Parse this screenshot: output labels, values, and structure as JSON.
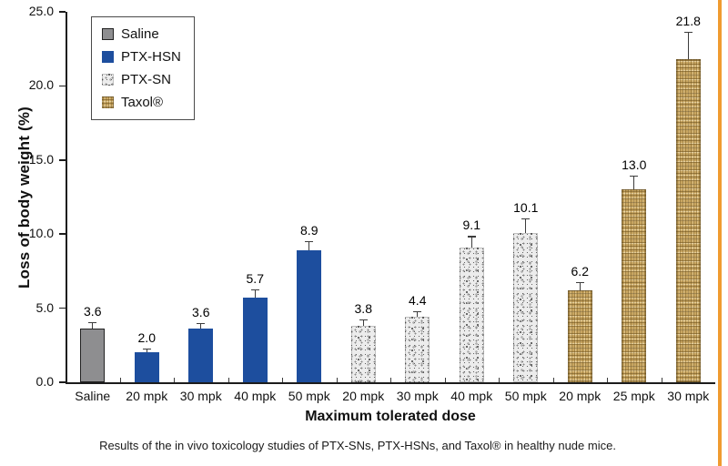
{
  "figure": {
    "caption": "Results of the in vivo toxicology studies of PTX-SNs, PTX-HSNs, and Taxol® in healthy nude mice.",
    "accent_border_color": "#f09b30"
  },
  "chart_data": {
    "type": "bar",
    "title": "",
    "xlabel": "Maximum tolerated dose",
    "ylabel": "Loss of body weight (%)",
    "ylim": [
      0,
      25
    ],
    "ytick_step": 5,
    "ytick_labels": [
      "0.0",
      "5.0",
      "10.0",
      "15.0",
      "20.0",
      "25.0"
    ],
    "grid": false,
    "legend_position": "top-left",
    "categories": [
      "Saline",
      "20 mpk",
      "30 mpk",
      "40 mpk",
      "50 mpk",
      "20 mpk",
      "30 mpk",
      "40 mpk",
      "50 mpk",
      "20 mpk",
      "25 mpk",
      "30 mpk"
    ],
    "values": [
      3.6,
      2.0,
      3.6,
      5.7,
      8.9,
      3.8,
      4.4,
      9.1,
      10.1,
      6.2,
      13.0,
      21.8
    ],
    "errors": [
      0.4,
      0.2,
      0.35,
      0.5,
      0.55,
      0.4,
      0.35,
      0.7,
      0.9,
      0.5,
      0.9,
      1.8
    ],
    "value_labels": [
      "3.6",
      "2.0",
      "3.6",
      "5.7",
      "8.9",
      "3.8",
      "4.4",
      "9.1",
      "10.1",
      "6.2",
      "13.0",
      "21.8"
    ],
    "bar_groups": [
      "saline",
      "ptx-hsn",
      "ptx-hsn",
      "ptx-hsn",
      "ptx-hsn",
      "ptx-sn",
      "ptx-sn",
      "ptx-sn",
      "ptx-sn",
      "taxol",
      "taxol",
      "taxol"
    ],
    "series_legend": [
      {
        "name": "Saline",
        "style": "saline",
        "color": "#8e8e90"
      },
      {
        "name": "PTX-HSN",
        "style": "ptx-hsn",
        "color": "#1d4e9e"
      },
      {
        "name": "PTX-SN",
        "style": "ptx-sn",
        "color": "#c8c8c8"
      },
      {
        "name": "Taxol®",
        "style": "taxol",
        "color": "#c9a661"
      }
    ]
  }
}
